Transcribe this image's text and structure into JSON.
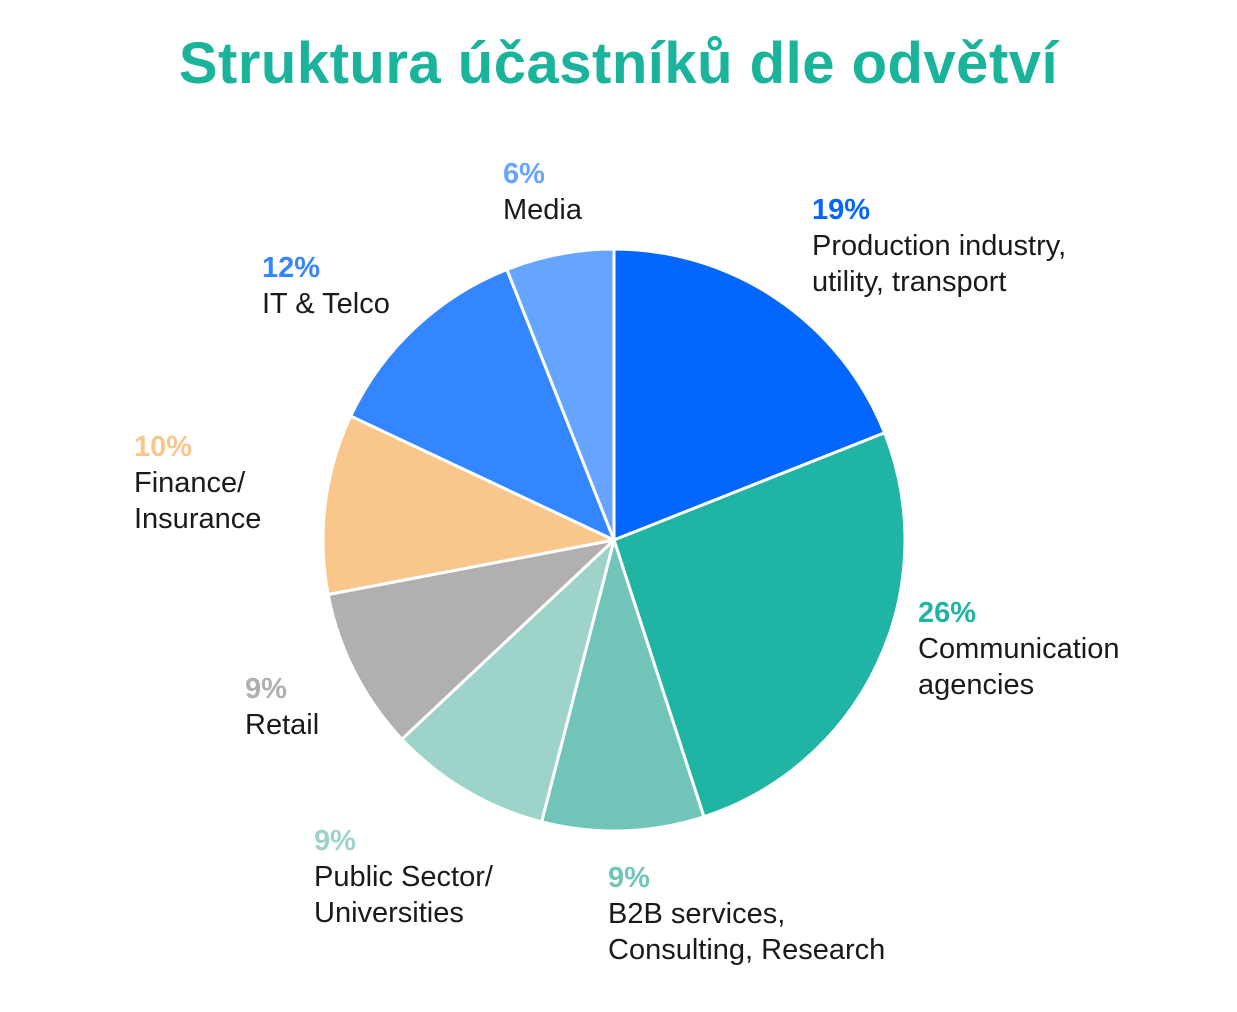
{
  "chart_data": {
    "type": "pie",
    "title": "Struktura účastníků dle odvětví",
    "slices": [
      {
        "pct_label": "19%",
        "value": 19,
        "label_lines": [
          "Production industry,",
          "utility, transport"
        ],
        "color": "#0366ff",
        "pct_color": "#0366ff"
      },
      {
        "pct_label": "26%",
        "value": 26,
        "label_lines": [
          "Communication",
          "agencies"
        ],
        "color": "#20b4a4",
        "pct_color": "#20b4a4"
      },
      {
        "pct_label": "9%",
        "value": 9,
        "label_lines": [
          "B2B services,",
          "Consulting, Research"
        ],
        "color": "#71c5b8",
        "pct_color": "#71c5b8"
      },
      {
        "pct_label": "9%",
        "value": 9,
        "label_lines": [
          "Public Sector/",
          "Universities"
        ],
        "color": "#9ed3ca",
        "pct_color": "#9ed3ca"
      },
      {
        "pct_label": "9%",
        "value": 9,
        "label_lines": [
          "Retail"
        ],
        "color": "#b1afaf",
        "pct_color": "#b1afaf"
      },
      {
        "pct_label": "10%",
        "value": 10,
        "label_lines": [
          "Finance/",
          "Insurance"
        ],
        "color": "#f9c78b",
        "pct_color": "#f9c78b"
      },
      {
        "pct_label": "12%",
        "value": 12,
        "label_lines": [
          "IT & Telco"
        ],
        "color": "#3386ff",
        "pct_color": "#3386ff"
      },
      {
        "pct_label": "6%",
        "value": 6,
        "label_lines": [
          "Media"
        ],
        "color": "#66a5ff",
        "pct_color": "#66a5ff"
      }
    ]
  }
}
